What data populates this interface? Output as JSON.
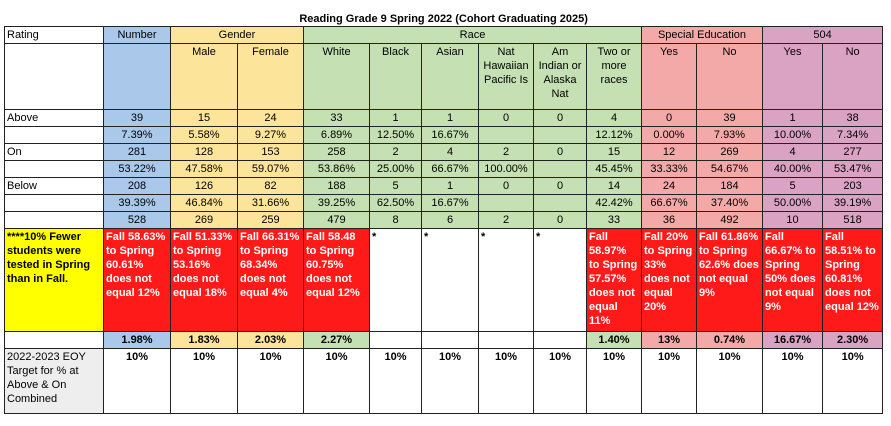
{
  "title": "Reading Grade 9 Spring 2022 (Cohort Graduating 2025)",
  "group_headers": {
    "rating": "Rating",
    "number": "Number",
    "gender": "Gender",
    "race": "Race",
    "sped": "Special Education",
    "s504": "504"
  },
  "columns": [
    "Male",
    "Female",
    "White",
    "Black",
    "Asian",
    "Nat Hawaiian Pacific Is",
    "Am Indian or Alaska Nat",
    "Two or more races",
    "Yes",
    "No",
    "Yes",
    "No"
  ],
  "rows": [
    {
      "label": "Above",
      "cells": [
        "39",
        "15",
        "24",
        "33",
        "1",
        "1",
        "0",
        "0",
        "4",
        "0",
        "39",
        "1",
        "38"
      ]
    },
    {
      "label": "",
      "cells": [
        "7.39%",
        "5.58%",
        "9.27%",
        "6.89%",
        "12.50%",
        "16.67%",
        "",
        "",
        "12.12%",
        "0.00%",
        "7.93%",
        "10.00%",
        "7.34%"
      ]
    },
    {
      "label": "On",
      "cells": [
        "281",
        "128",
        "153",
        "258",
        "2",
        "4",
        "2",
        "0",
        "15",
        "12",
        "269",
        "4",
        "277"
      ]
    },
    {
      "label": "",
      "cells": [
        "53.22%",
        "47.58%",
        "59.07%",
        "53.86%",
        "25.00%",
        "66.67%",
        "100.00%",
        "",
        "45.45%",
        "33.33%",
        "54.67%",
        "40.00%",
        "53.47%"
      ]
    },
    {
      "label": "Below",
      "cells": [
        "208",
        "126",
        "82",
        "188",
        "5",
        "1",
        "0",
        "0",
        "14",
        "24",
        "184",
        "5",
        "203"
      ]
    },
    {
      "label": "",
      "cells": [
        "39.39%",
        "46.84%",
        "31.66%",
        "39.25%",
        "62.50%",
        "16.67%",
        "",
        "",
        "42.42%",
        "66.67%",
        "37.40%",
        "50.00%",
        "39.19%"
      ]
    },
    {
      "label": "",
      "cells": [
        "528",
        "269",
        "259",
        "479",
        "8",
        "6",
        "2",
        "0",
        "33",
        "36",
        "492",
        "10",
        "518"
      ]
    }
  ],
  "notes_label": "****10% Fewer students were tested in Spring than in Fall.",
  "notes": [
    "Fall 58.63% to Spring 60.61% does not equal 12%",
    "Fall 51.33% to Spring 53.16% does not equal 18%",
    "Fall 66.31% to Spring 68.34% does not equal 4%",
    "Fall 58.48 to Spring 60.75% does not equal 12%",
    "*",
    "*",
    "*",
    "*",
    "Fall 58.97% to Spring 57.57% does not equal 11%",
    "Fall 20% to Spring 33% does not equal 20%",
    "Fall 61.86% to Spring 62.6% does not equal 9%",
    "Fall 66.67% to Spring 50% does not equal 9%",
    "Fall 58.51% to Spring 60.81% does not equal 12%"
  ],
  "diffs": [
    "1.98%",
    "1.83%",
    "2.03%",
    "2.27%",
    "",
    "",
    "",
    "",
    "1.40%",
    "13%",
    "0.74%",
    "16.67%",
    "2.30%"
  ],
  "target_label": "2022-2023 EOY Target for % at Above & On Combined",
  "targets": [
    "10%",
    "10%",
    "10%",
    "10%",
    "10%",
    "10%",
    "10%",
    "10%",
    "10%",
    "10%",
    "10%",
    "10%",
    "10%"
  ],
  "colors": {
    "number": "#a9c8ea",
    "gender": "#fde49b",
    "race": "#c5e0b3",
    "sped": "#f4a9a9",
    "s504": "#dba3c3",
    "note": "#ff1a1a",
    "note_label": "#ffff00"
  }
}
